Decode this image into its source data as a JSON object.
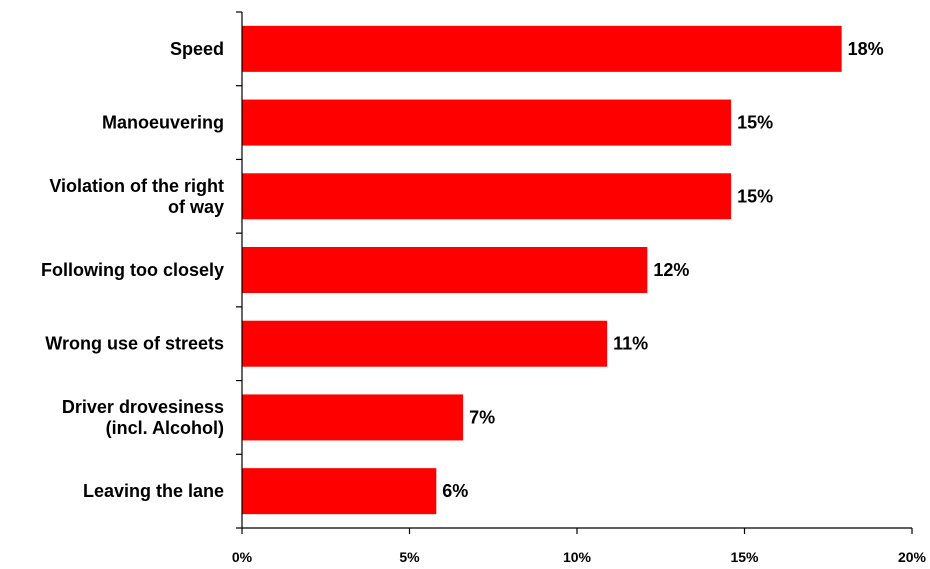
{
  "chart_data": {
    "type": "bar",
    "orientation": "horizontal",
    "categories": [
      [
        "Speed"
      ],
      [
        "Manoeuvering"
      ],
      [
        "Violation of the right",
        "of way"
      ],
      [
        "Following too closely"
      ],
      [
        "Wrong use of streets"
      ],
      [
        "Driver drovesiness",
        "(incl. Alcohol)"
      ],
      [
        "Leaving the lane"
      ]
    ],
    "values": [
      17.9,
      14.6,
      14.6,
      12.1,
      10.9,
      6.6,
      5.8
    ],
    "value_labels": [
      "18%",
      "15%",
      "15%",
      "12%",
      "11%",
      "7%",
      "6%"
    ],
    "xlim": [
      0,
      20
    ],
    "xticks": [
      0,
      5,
      10,
      15,
      20
    ],
    "xtick_labels": [
      "0%",
      "5%",
      "10%",
      "15%",
      "20%"
    ],
    "bar_color": "#ff0000",
    "grid": false,
    "title": "",
    "xlabel": "",
    "ylabel": ""
  }
}
